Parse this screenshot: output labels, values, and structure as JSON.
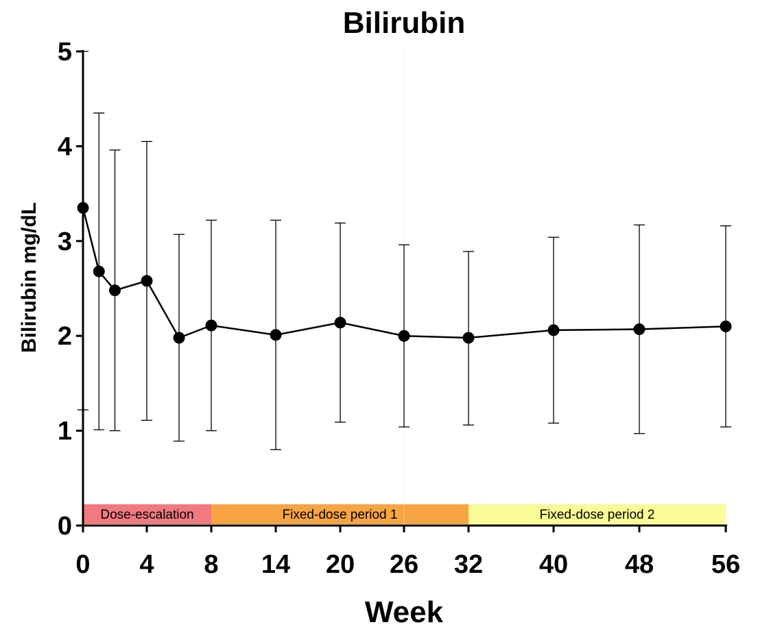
{
  "chart_data": {
    "type": "line",
    "title": "Bilirubin",
    "xlabel": "Week",
    "ylabel": "Bilirubin mg/dL",
    "ylim": [
      0,
      5
    ],
    "y_ticks": [
      0,
      1,
      2,
      3,
      4,
      5
    ],
    "x_tick_labels": [
      "0",
      "4",
      "8",
      "14",
      "20",
      "26",
      "32",
      "40",
      "48",
      "56"
    ],
    "grid": false,
    "series": [
      {
        "points": [
          {
            "x": 0,
            "y": 3.35,
            "low": 1.22,
            "high": 5.0
          },
          {
            "x": 1,
            "y": 2.68,
            "low": 1.01,
            "high": 4.35
          },
          {
            "x": 2,
            "y": 2.48,
            "low": 1.0,
            "high": 3.96
          },
          {
            "x": 4,
            "y": 2.58,
            "low": 1.11,
            "high": 4.05
          },
          {
            "x": 6,
            "y": 1.98,
            "low": 0.89,
            "high": 3.07
          },
          {
            "x": 8,
            "y": 2.11,
            "low": 1.0,
            "high": 3.22
          },
          {
            "x": 14,
            "y": 2.01,
            "low": 0.8,
            "high": 3.22
          },
          {
            "x": 20,
            "y": 2.14,
            "low": 1.09,
            "high": 3.19
          },
          {
            "x": 26,
            "y": 2.0,
            "low": 1.04,
            "high": 2.96
          },
          {
            "x": 32,
            "y": 1.98,
            "low": 1.06,
            "high": 2.89
          },
          {
            "x": 40,
            "y": 2.06,
            "low": 1.08,
            "high": 3.04
          },
          {
            "x": 48,
            "y": 2.07,
            "low": 0.97,
            "high": 3.17
          },
          {
            "x": 56,
            "y": 2.1,
            "low": 1.04,
            "high": 3.16
          }
        ]
      }
    ],
    "bands": [
      {
        "label": "Dose-escalation",
        "start": 0,
        "end": 8,
        "color": "#f07a7e"
      },
      {
        "label": "Fixed-dose period 1",
        "start": 8,
        "end": 32,
        "color": "#f7a443"
      },
      {
        "label": "Fixed-dose period 2",
        "start": 32,
        "end": 56,
        "color": "#fafa96"
      }
    ],
    "reference_lines": [
      26
    ]
  }
}
